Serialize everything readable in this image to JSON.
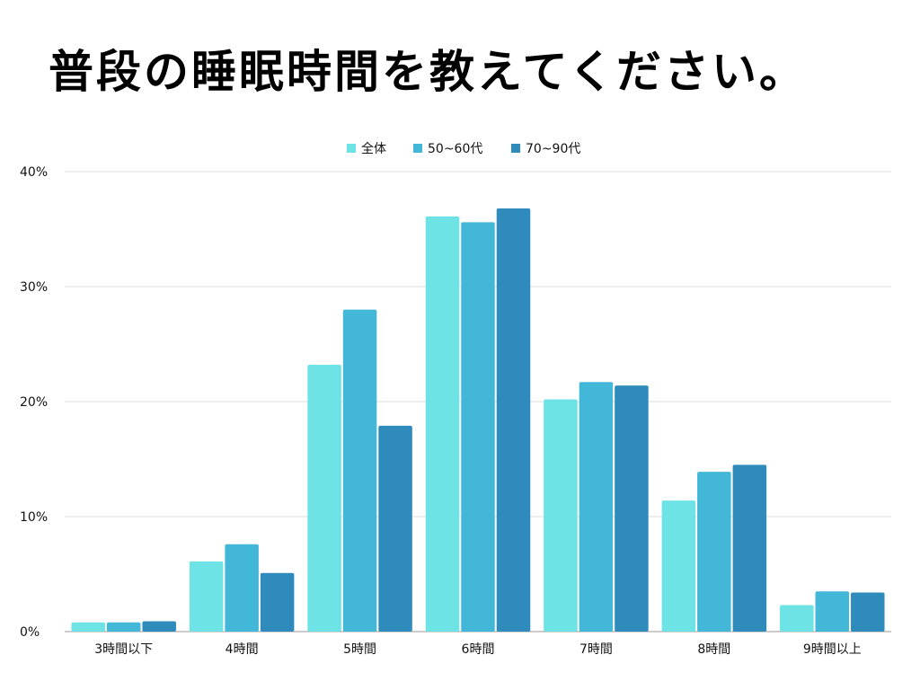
{
  "chart_data": {
    "type": "bar",
    "title": "普段の睡眠時間を教えてください。",
    "categories": [
      "3時間以下",
      "4時間",
      "5時間",
      "6時間",
      "7時間",
      "8時間",
      "9時間以上"
    ],
    "series": [
      {
        "name": "全体",
        "color": "#6de3e6",
        "values": [
          0.8,
          6.1,
          23.2,
          36.1,
          20.2,
          11.4,
          2.3
        ]
      },
      {
        "name": "50~60代",
        "color": "#43b7d7",
        "values": [
          0.8,
          7.6,
          28.0,
          35.6,
          21.7,
          13.9,
          3.5
        ]
      },
      {
        "name": "70~90代",
        "color": "#2e8bbc",
        "values": [
          0.9,
          5.1,
          17.9,
          36.8,
          21.4,
          14.5,
          3.4
        ]
      }
    ],
    "ylim": [
      0,
      40
    ],
    "yticks": [
      "0%",
      "10%",
      "20%",
      "30%",
      "40%"
    ],
    "ytick_values": [
      0,
      10,
      20,
      30,
      40
    ],
    "xlabel": "",
    "ylabel": "",
    "legend": "top-center",
    "grid": true
  }
}
